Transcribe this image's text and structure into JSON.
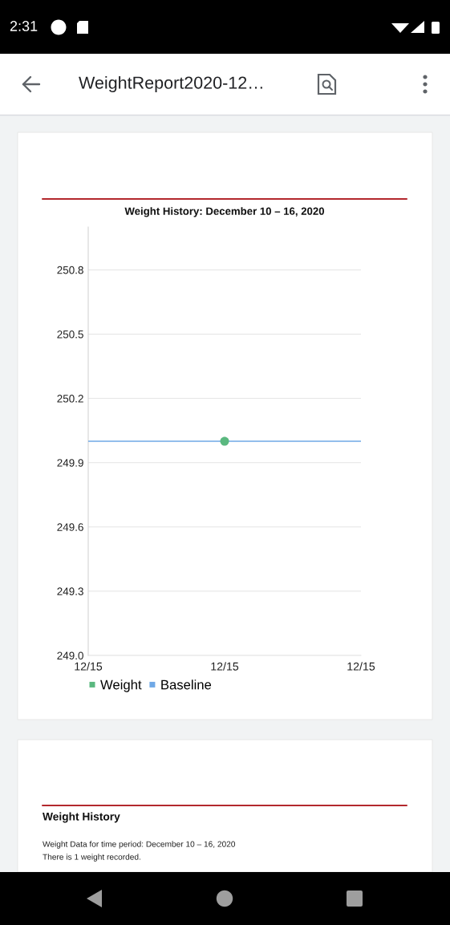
{
  "chart_data": {
    "type": "line",
    "title": "Weight History: December 10 – 16, 2020",
    "categories": [
      "12/15",
      "12/15",
      "12/15"
    ],
    "series": [
      {
        "name": "Weight",
        "type": "scatter",
        "marker": "circle",
        "color": "#5ab87f",
        "values": [
          null,
          250.0,
          null
        ]
      },
      {
        "name": "Baseline",
        "color": "#6fa8e6",
        "values": [
          250.0,
          250.0,
          250.0
        ]
      }
    ],
    "ylim": [
      249.0,
      251.0
    ],
    "yticks": [
      {
        "value": 249.0,
        "label": "249.0"
      },
      249.3,
      249.6,
      249.9,
      250.2,
      250.5,
      250.8
    ],
    "grid": "y",
    "legend": "bottom",
    "line_style": "solid",
    "annotations": [
      "2:31",
      "WeightReport2020-12…",
      "Weight History",
      "Weight Data for time period: December 10 – 16, 2020",
      "There is 1 weight recorded."
    ]
  }
}
